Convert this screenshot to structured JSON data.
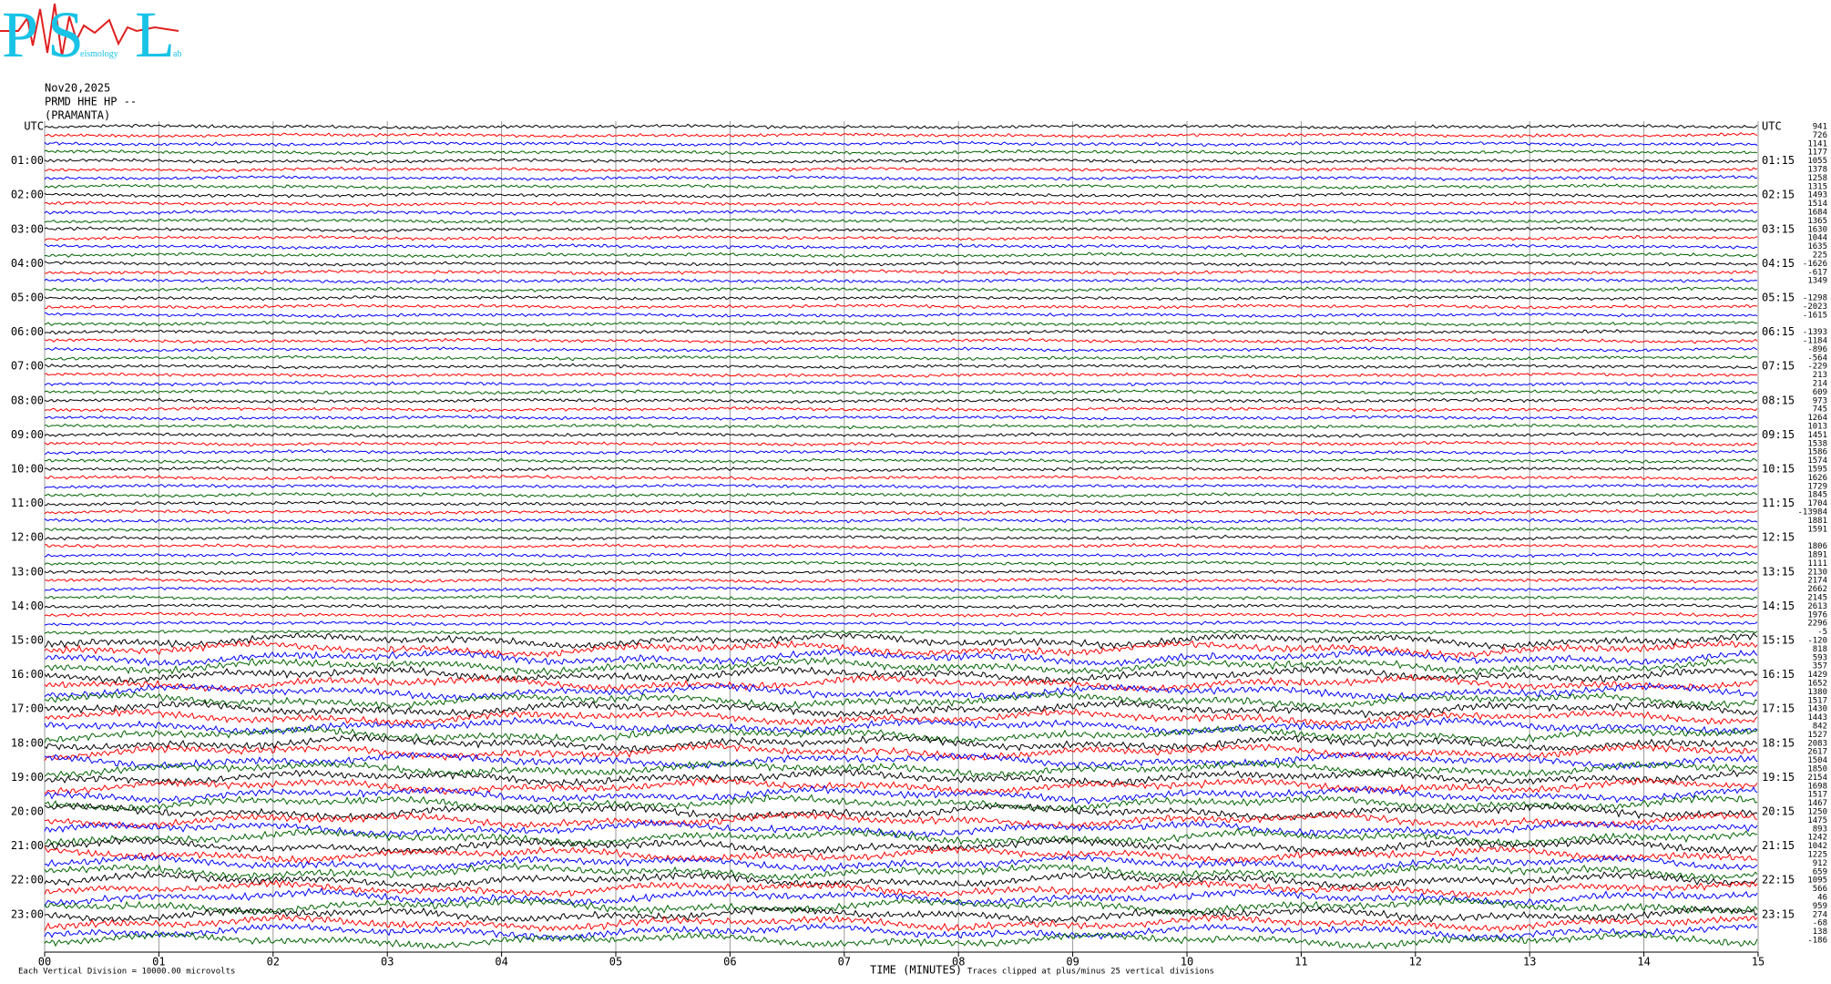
{
  "logo": {
    "letters": [
      "P",
      "S",
      "L"
    ],
    "words": [
      "eismology",
      "ab"
    ]
  },
  "header": {
    "date": "Nov20,2025",
    "channel": "PRMD HHE HP --",
    "station": "(PRAMANTA)"
  },
  "left_labels": [
    "UTC",
    "01:00",
    "02:00",
    "03:00",
    "04:00",
    "05:00",
    "06:00",
    "07:00",
    "08:00",
    "09:00",
    "10:00",
    "11:00",
    "12:00",
    "13:00",
    "14:00",
    "15:00",
    "16:00",
    "17:00",
    "18:00",
    "19:00",
    "20:00",
    "21:00",
    "22:00",
    "23:00"
  ],
  "right_labels": [
    "UTC",
    "01:15",
    "02:15",
    "03:15",
    "04:15",
    "05:15",
    "06:15",
    "07:15",
    "08:15",
    "09:15",
    "10:15",
    "11:15",
    "12:15",
    "13:15",
    "14:15",
    "15:15",
    "16:15",
    "17:15",
    "18:15",
    "19:15",
    "20:15",
    "21:15",
    "22:15",
    "23:15"
  ],
  "trace_offsets": [
    941,
    726,
    1141,
    1177,
    1055,
    1378,
    1258,
    1315,
    1493,
    1514,
    1684,
    1365,
    1630,
    1044,
    1635,
    225,
    -1626,
    -617,
    1349,
    null,
    -1298,
    -2023,
    -1615,
    null,
    -1393,
    -1184,
    -896,
    -564,
    -229,
    213,
    214,
    609,
    973,
    745,
    1264,
    1013,
    1451,
    1538,
    1586,
    1574,
    1595,
    1626,
    1729,
    1845,
    1704,
    -13984,
    1881,
    1591,
    null,
    1806,
    1891,
    1111,
    2130,
    2174,
    2662,
    2145,
    2613,
    1976,
    2296,
    -5,
    -120,
    818,
    593,
    357,
    1429,
    1652,
    1380,
    1517,
    1430,
    1443,
    842,
    1527,
    2083,
    2617,
    1504,
    1850,
    2154,
    1698,
    1517,
    1467,
    1250,
    1475,
    893,
    1242,
    1042,
    1225,
    912,
    659,
    1095,
    566,
    46,
    959,
    274,
    -68,
    138,
    -186
  ],
  "trace_colors": [
    "#000000",
    "#ff0000",
    "#0000ff",
    "#006400"
  ],
  "x_axis": {
    "label": "TIME (MINUTES)",
    "xlim": [
      0,
      15
    ],
    "ticks": [
      {
        "value": 0,
        "label": "00"
      },
      {
        "value": 1,
        "label": "01"
      },
      {
        "value": 2,
        "label": "02"
      },
      {
        "value": 3,
        "label": "03"
      },
      {
        "value": 4,
        "label": "04"
      },
      {
        "value": 5,
        "label": "05"
      },
      {
        "value": 6,
        "label": "06"
      },
      {
        "value": 7,
        "label": "07"
      },
      {
        "value": 8,
        "label": "08"
      },
      {
        "value": 9,
        "label": "09"
      },
      {
        "value": 10,
        "label": "10"
      },
      {
        "value": 11,
        "label": "11"
      },
      {
        "value": 12,
        "label": "12"
      },
      {
        "value": 13,
        "label": "13"
      },
      {
        "value": 14,
        "label": "14"
      },
      {
        "value": 15,
        "label": "15"
      }
    ]
  },
  "footer": {
    "scale": "Each Vertical Division = 10000.00 microvolts",
    "clip": "Traces clipped at plus/minus 25 vertical divisions"
  }
}
